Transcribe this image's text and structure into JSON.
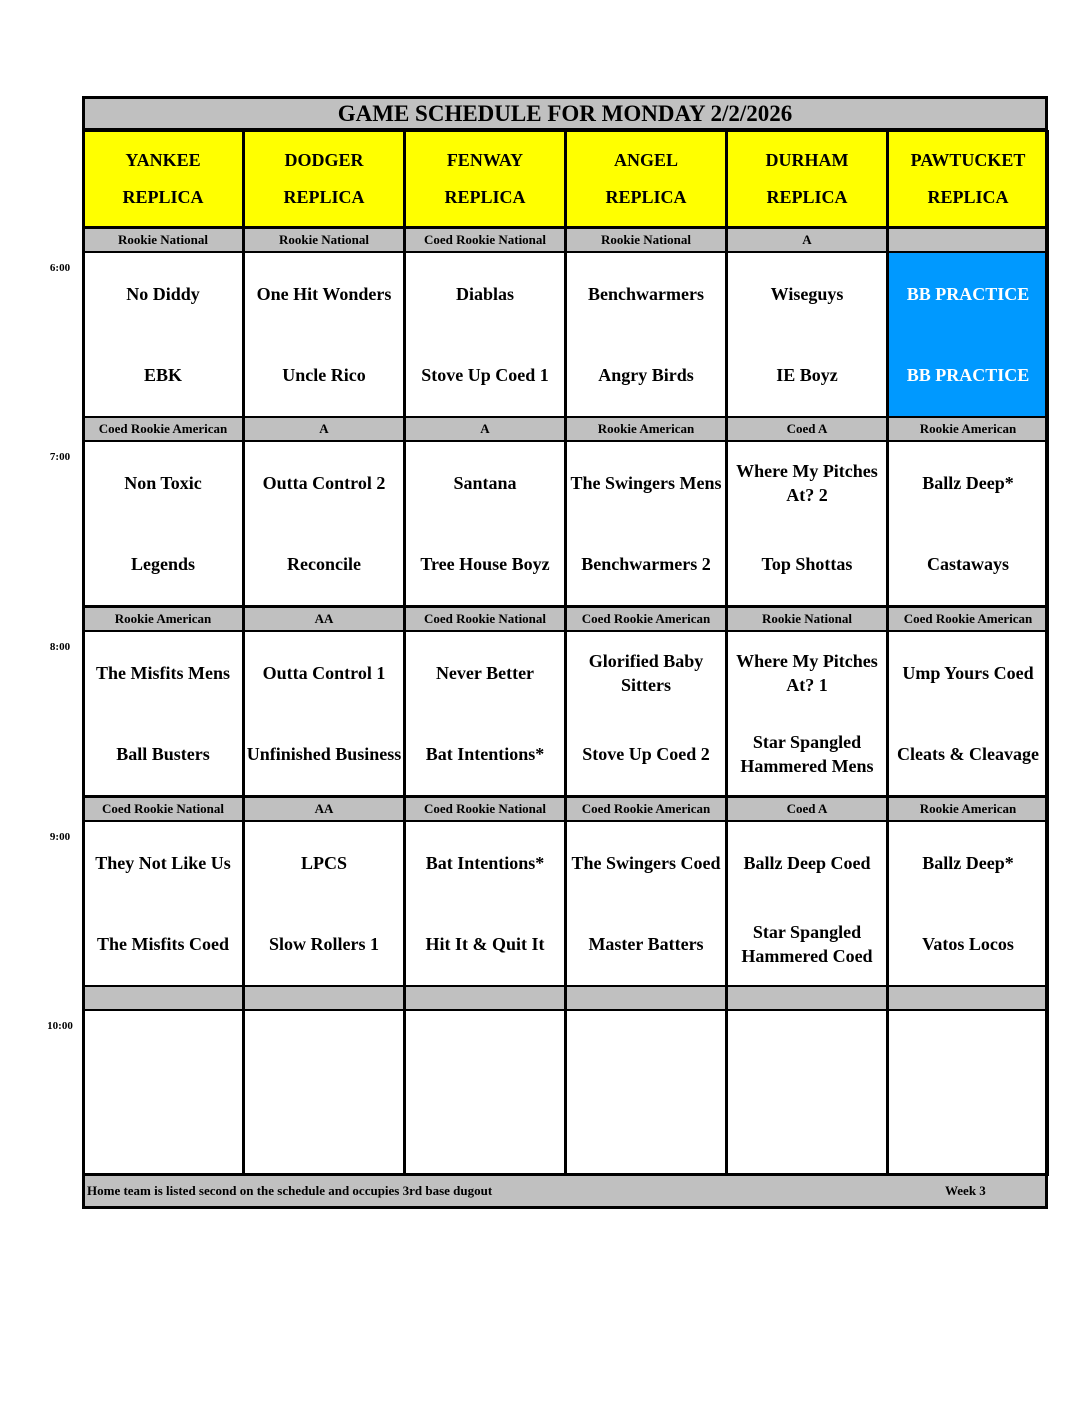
{
  "title": "GAME SCHEDULE FOR MONDAY 2/2/2026",
  "fields": [
    {
      "line1": "YANKEE",
      "line2": "REPLICA"
    },
    {
      "line1": "DODGER",
      "line2": "REPLICA"
    },
    {
      "line1": "FENWAY",
      "line2": "REPLICA"
    },
    {
      "line1": "ANGEL",
      "line2": "REPLICA"
    },
    {
      "line1": "DURHAM",
      "line2": "REPLICA"
    },
    {
      "line1": "PAWTUCKET",
      "line2": "REPLICA"
    }
  ],
  "slots": [
    {
      "time": "6:00",
      "divisions": [
        "Rookie National",
        "Rookie National",
        "Coed Rookie National",
        "Rookie National",
        "A",
        ""
      ],
      "games": [
        {
          "away": "No Diddy",
          "home": "EBK"
        },
        {
          "away": "One Hit Wonders",
          "home": "Uncle Rico"
        },
        {
          "away": "Diablas",
          "home": "Stove Up Coed 1"
        },
        {
          "away": "Benchwarmers",
          "home": "Angry Birds"
        },
        {
          "away": "Wiseguys",
          "home": "IE Boyz"
        },
        {
          "away": "BB PRACTICE",
          "home": "BB PRACTICE",
          "practice": true
        }
      ]
    },
    {
      "time": "7:00",
      "divisions": [
        "Coed Rookie American",
        "A",
        "A",
        "Rookie American",
        "Coed A",
        "Rookie American"
      ],
      "games": [
        {
          "away": "Non Toxic",
          "home": "Legends"
        },
        {
          "away": "Outta Control 2",
          "home": "Reconcile"
        },
        {
          "away": "Santana",
          "home": "Tree House Boyz"
        },
        {
          "away": "The Swingers Mens",
          "home": "Benchwarmers 2"
        },
        {
          "away": "Where My Pitches At? 2",
          "home": "Top Shottas"
        },
        {
          "away": "Ballz Deep*",
          "home": "Castaways"
        }
      ]
    },
    {
      "time": "8:00",
      "divisions": [
        "Rookie American",
        "AA",
        "Coed Rookie National",
        "Coed Rookie American",
        "Rookie National",
        "Coed Rookie American"
      ],
      "games": [
        {
          "away": "The Misfits Mens",
          "home": "Ball Busters"
        },
        {
          "away": "Outta Control 1",
          "home": "Unfinished Business"
        },
        {
          "away": "Never Better",
          "home": "Bat Intentions*"
        },
        {
          "away": "Glorified Baby Sitters",
          "home": "Stove Up Coed 2"
        },
        {
          "away": "Where My Pitches At? 1",
          "home": "Star Spangled Hammered Mens"
        },
        {
          "away": "Ump Yours Coed",
          "home": "Cleats & Cleavage"
        }
      ]
    },
    {
      "time": "9:00",
      "divisions": [
        "Coed Rookie National",
        "AA",
        "Coed Rookie National",
        "Coed Rookie American",
        "Coed A",
        "Rookie American"
      ],
      "games": [
        {
          "away": "They Not Like Us",
          "home": "The Misfits Coed"
        },
        {
          "away": "LPCS",
          "home": "Slow Rollers 1"
        },
        {
          "away": "Bat Intentions*",
          "home": "Hit It & Quit It"
        },
        {
          "away": "The Swingers Coed",
          "home": "Master Batters"
        },
        {
          "away": "Ballz Deep Coed",
          "home": "Star Spangled Hammered Coed"
        },
        {
          "away": "Ballz Deep*",
          "home": "Vatos Locos"
        }
      ]
    },
    {
      "time": "10:00",
      "divisions": [
        "",
        "",
        "",
        "",
        "",
        ""
      ],
      "games": [
        {
          "away": "",
          "home": ""
        },
        {
          "away": "",
          "home": ""
        },
        {
          "away": "",
          "home": ""
        },
        {
          "away": "",
          "home": ""
        },
        {
          "away": "",
          "home": ""
        },
        {
          "away": "",
          "home": ""
        }
      ]
    }
  ],
  "footer": {
    "note": "Home team is listed second on the schedule and occupies 3rd base dugout",
    "week": "Week 3"
  },
  "colors": {
    "header": "#ffff00",
    "gray": "#c0c0c0",
    "practice": "#0099ff"
  }
}
